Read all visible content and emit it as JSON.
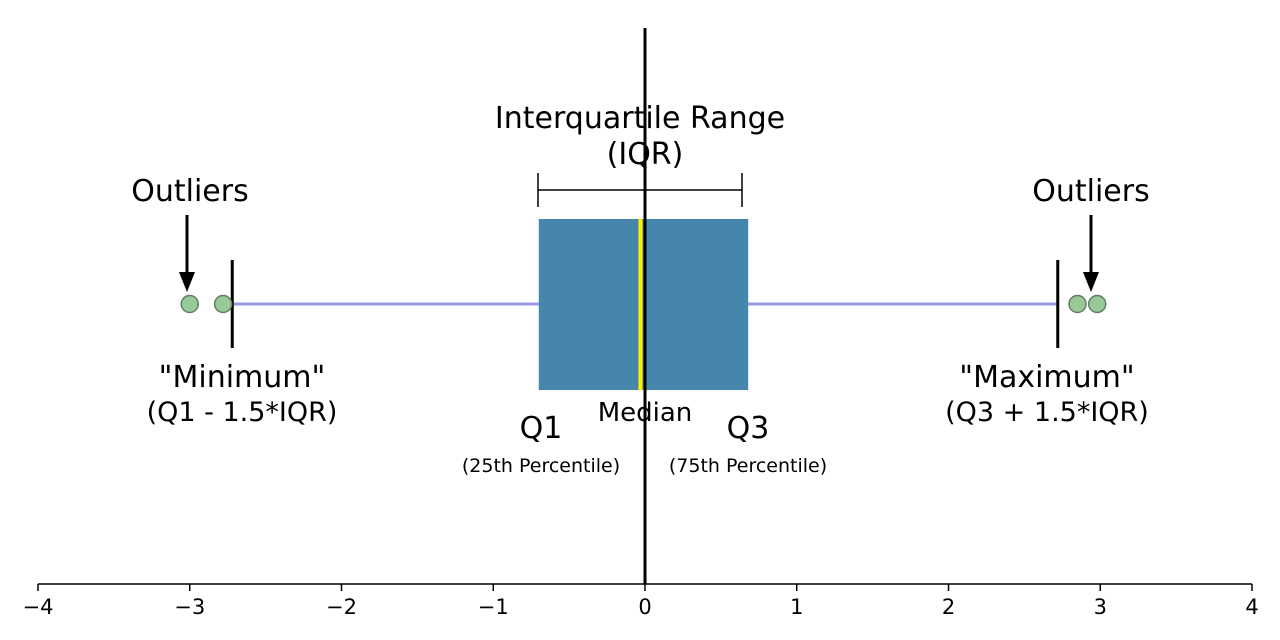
{
  "chart_data": {
    "type": "box",
    "title": "",
    "xlabel": "",
    "ylabel": "",
    "xlim": [
      -4,
      4
    ],
    "x_ticks": [
      -4,
      -3,
      -2,
      -1,
      0,
      1,
      2,
      3,
      4
    ],
    "x_tick_labels": [
      "−4",
      "−3",
      "−2",
      "−1",
      "0",
      "1",
      "2",
      "3",
      "4"
    ],
    "grid": false,
    "box": {
      "q1": -0.7,
      "median": -0.03,
      "q3": 0.68,
      "whisker_low": -2.72,
      "whisker_high": 2.72,
      "outliers": [
        -3.0,
        -2.78,
        2.85,
        2.98
      ]
    },
    "reference_line_x": 0,
    "colors": {
      "box": "#4686ad",
      "median": "#ffee00",
      "whisker": "#9999e0",
      "outlier_fill": "#99c999",
      "outlier_stroke": "#5f7f5f",
      "axis": "#000000"
    },
    "annotations": {
      "iqr_title": "Interquartile Range",
      "iqr_sub": "(IQR)",
      "outliers_left": "Outliers",
      "outliers_right": "Outliers",
      "minimum": "\"Minimum\"",
      "minimum_formula": "(Q1 - 1.5*IQR)",
      "maximum": "\"Maximum\"",
      "maximum_formula": "(Q3 + 1.5*IQR)",
      "q1": "Q1",
      "q1_sub": "(25th Percentile)",
      "median": "Median",
      "q3": "Q3",
      "q3_sub": "(75th Percentile)"
    }
  }
}
